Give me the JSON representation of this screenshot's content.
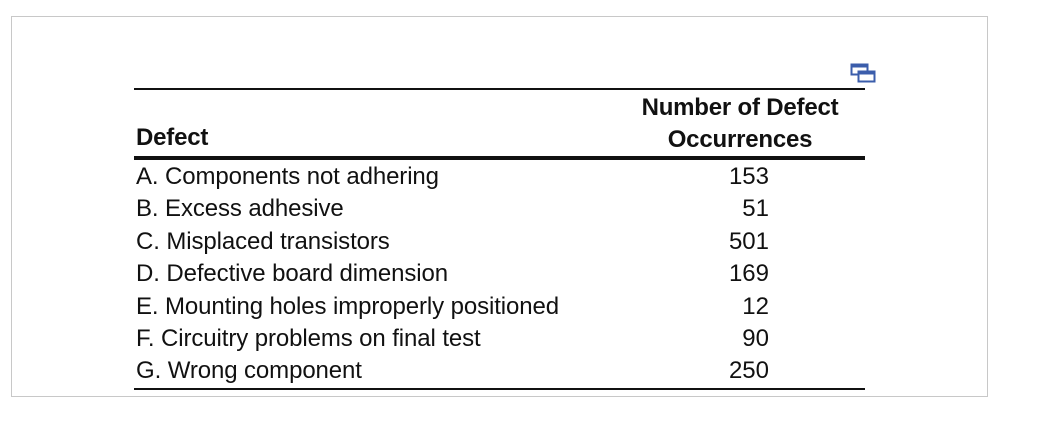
{
  "table": {
    "header": {
      "defect_label": "Defect",
      "count_label_line1": "Number of Defect",
      "count_label_line2": "Occurrences"
    },
    "rows": [
      {
        "defect": "A. Components not adhering",
        "count": "153"
      },
      {
        "defect": "B. Excess adhesive",
        "count": "51"
      },
      {
        "defect": "C. Misplaced transistors",
        "count": "501"
      },
      {
        "defect": "D. Defective board dimension",
        "count": "169"
      },
      {
        "defect": "E. Mounting holes improperly positioned",
        "count": "12"
      },
      {
        "defect": "F. Circuitry problems on final test",
        "count": "90"
      },
      {
        "defect": "G. Wrong component",
        "count": "250"
      }
    ]
  },
  "icons": {
    "copy": "copy-icon"
  },
  "colors": {
    "icon_blue": "#3b5dab",
    "frame_border": "#c8c8c8"
  }
}
